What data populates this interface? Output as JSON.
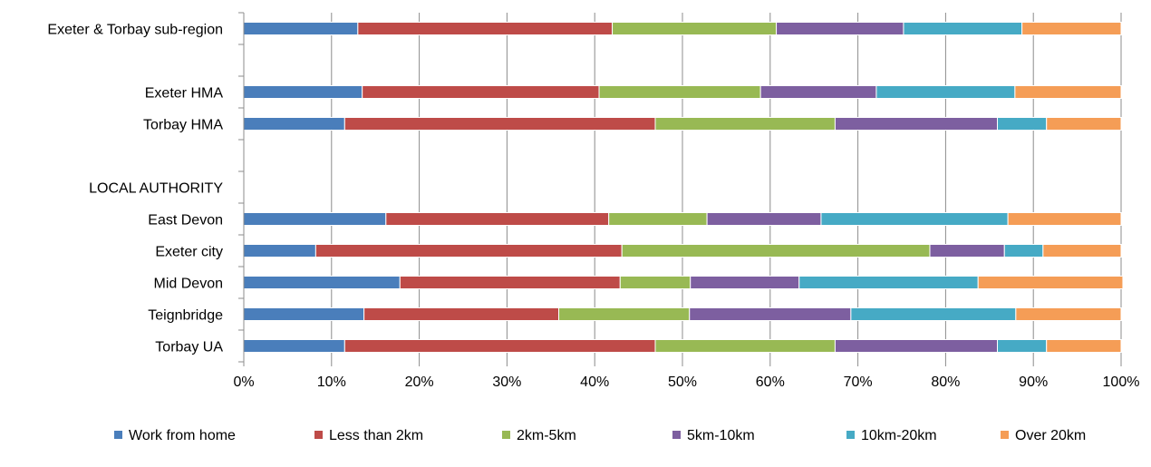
{
  "chart_data": {
    "type": "bar",
    "orientation": "horizontal",
    "stacked": "percent",
    "title": "",
    "xlabel": "",
    "ylabel": "",
    "xlim": [
      0,
      100
    ],
    "x_ticks": [
      "0%",
      "10%",
      "20%",
      "30%",
      "40%",
      "50%",
      "60%",
      "70%",
      "80%",
      "90%",
      "100%"
    ],
    "grid": true,
    "legend_position": "bottom",
    "categories": [
      "Exeter & Torbay sub-region",
      "",
      "Exeter HMA",
      "Torbay HMA",
      "",
      "LOCAL AUTHORITY",
      "East Devon",
      "Exeter city",
      "Mid Devon",
      "Teignbridge",
      "Torbay UA"
    ],
    "series": [
      {
        "name": "Work from home",
        "color": "#4a7ebb",
        "values": [
          13.0,
          null,
          13.5,
          11.5,
          null,
          null,
          16.2,
          8.2,
          17.8,
          13.7,
          11.5
        ]
      },
      {
        "name": "Less than 2km",
        "color": "#be4b48",
        "values": [
          29.0,
          null,
          27.0,
          35.4,
          null,
          null,
          25.4,
          34.9,
          25.1,
          22.2,
          35.4
        ]
      },
      {
        "name": "2km-5km",
        "color": "#98b954",
        "values": [
          18.7,
          null,
          18.4,
          20.5,
          null,
          null,
          11.2,
          35.1,
          8.0,
          14.9,
          20.5
        ]
      },
      {
        "name": "5km-10km",
        "color": "#7d5fa0",
        "values": [
          14.5,
          null,
          13.2,
          18.5,
          null,
          null,
          13.0,
          8.5,
          12.4,
          18.4,
          18.5
        ]
      },
      {
        "name": "10km-20km",
        "color": "#46aac5",
        "values": [
          13.5,
          null,
          15.8,
          5.6,
          null,
          null,
          21.3,
          4.4,
          20.4,
          18.8,
          5.6
        ]
      },
      {
        "name": "Over 20km",
        "color": "#f59d56",
        "values": [
          11.3,
          null,
          12.1,
          8.5,
          null,
          null,
          12.9,
          8.9,
          16.5,
          12.0,
          8.5
        ]
      }
    ]
  }
}
